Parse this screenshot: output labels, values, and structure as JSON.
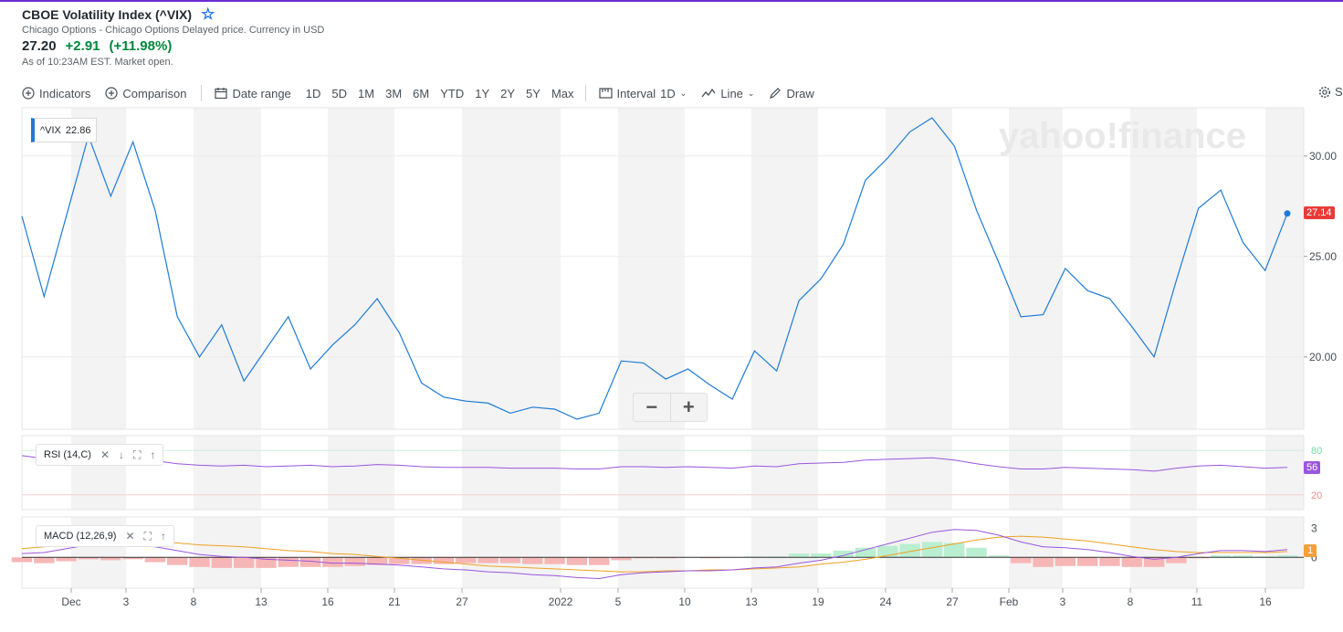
{
  "header": {
    "title": "CBOE Volatility Index (^VIX)",
    "subtitle": "Chicago Options - Chicago Options Delayed price. Currency in USD",
    "price": "27.20",
    "change": "+2.91",
    "change_pct": "(+11.98%)",
    "as_of": "As of 10:23AM EST. Market open."
  },
  "toolbar": {
    "indicators": "Indicators",
    "comparison": "Comparison",
    "date_range": "Date range",
    "ranges": [
      "1D",
      "5D",
      "1M",
      "3M",
      "6M",
      "YTD",
      "1Y",
      "2Y",
      "5Y",
      "Max"
    ],
    "interval_label": "Interval",
    "interval_value": "1D",
    "chart_type": "Line",
    "draw": "Draw",
    "settings": "S"
  },
  "watermark": "yahoo!finance",
  "price_label": {
    "symbol": "^VIX",
    "value": "22.86"
  },
  "current_tag": "27.14",
  "rsi": {
    "label": "RSI (14,C)",
    "tag": "56",
    "levels": [
      "80",
      "20"
    ]
  },
  "macd": {
    "label": "MACD (12,26,9)",
    "tag": "1",
    "ticks": [
      "3",
      "0"
    ]
  },
  "zoom": {
    "minus": "−",
    "plus": "+"
  },
  "colors": {
    "price_line": "#1e7ad7",
    "rsi_line": "#9b55e0",
    "macd_line": "#9b55e0",
    "signal_line": "#f0a020",
    "hist_pos": "#b9efd0",
    "hist_neg": "#f7b6b6",
    "tag_red": "#e93a3a",
    "tag_purple": "#9b55e0",
    "tag_orange": "#f3a03c"
  },
  "chart_data": {
    "type": "line",
    "x_labels": [
      "Dec",
      "3",
      "8",
      "13",
      "16",
      "21",
      "27",
      "2022",
      "5",
      "10",
      "13",
      "19",
      "24",
      "27",
      "Feb",
      "3",
      "8",
      "11",
      "16"
    ],
    "ylim": [
      16.4,
      32.4
    ],
    "y_ticks": [
      "30.00",
      "25.00",
      "20.00"
    ],
    "series": [
      {
        "name": "^VIX",
        "values": [
          27.0,
          23.0,
          27.0,
          31.0,
          28.0,
          30.7,
          27.3,
          22.0,
          20.0,
          21.6,
          18.8,
          20.4,
          22.0,
          19.4,
          20.6,
          21.6,
          22.9,
          21.2,
          18.7,
          18.0,
          17.8,
          17.7,
          17.2,
          17.5,
          17.4,
          16.9,
          17.2,
          19.8,
          19.7,
          18.9,
          19.4,
          18.6,
          17.9,
          20.3,
          19.3,
          22.8,
          23.9,
          25.6,
          28.8,
          29.9,
          31.2,
          31.9,
          30.5,
          27.3,
          24.7,
          22.0,
          22.1,
          24.4,
          23.3,
          22.9,
          21.5,
          20.0,
          23.8,
          27.4,
          28.3,
          25.7,
          24.3,
          27.14
        ]
      }
    ],
    "rsi_values": [
      73,
      69,
      66,
      67,
      68,
      67,
      66,
      62,
      60,
      59,
      60,
      58,
      59,
      60,
      58,
      59,
      61,
      60,
      58,
      57,
      57,
      57,
      56,
      56,
      56,
      55,
      55,
      58,
      58,
      57,
      58,
      57,
      56,
      59,
      58,
      62,
      63,
      64,
      67,
      68,
      69,
      70,
      67,
      62,
      58,
      55,
      55,
      57,
      56,
      55,
      54,
      52,
      56,
      59,
      60,
      58,
      56,
      57
    ],
    "macd_values": [
      0.4,
      0.5,
      0.9,
      1.3,
      1.3,
      1.5,
      1.1,
      0.7,
      0.3,
      0.1,
      0.0,
      -0.2,
      -0.3,
      -0.4,
      -0.6,
      -0.6,
      -0.7,
      -0.8,
      -1.0,
      -1.2,
      -1.3,
      -1.5,
      -1.6,
      -1.8,
      -1.9,
      -2.1,
      -2.2,
      -1.8,
      -1.6,
      -1.5,
      -1.4,
      -1.4,
      -1.3,
      -1.1,
      -1.0,
      -0.6,
      -0.3,
      0.2,
      0.8,
      1.4,
      2.0,
      2.6,
      2.9,
      2.8,
      2.3,
      1.6,
      1.1,
      1.0,
      0.8,
      0.5,
      0.1,
      -0.2,
      0.0,
      0.4,
      0.7,
      0.7,
      0.6,
      0.8
    ],
    "signal_values": [
      0.9,
      1.1,
      1.3,
      1.5,
      1.6,
      1.7,
      1.6,
      1.5,
      1.3,
      1.2,
      1.1,
      0.9,
      0.7,
      0.6,
      0.4,
      0.3,
      0.1,
      -0.1,
      -0.3,
      -0.5,
      -0.7,
      -0.9,
      -1.0,
      -1.1,
      -1.2,
      -1.3,
      -1.4,
      -1.5,
      -1.5,
      -1.4,
      -1.4,
      -1.3,
      -1.3,
      -1.2,
      -1.1,
      -1.0,
      -0.7,
      -0.5,
      -0.2,
      0.2,
      0.6,
      1.0,
      1.4,
      1.8,
      2.1,
      2.2,
      2.1,
      1.9,
      1.7,
      1.4,
      1.1,
      0.8,
      0.6,
      0.5,
      0.5,
      0.5,
      0.5,
      0.6
    ],
    "histogram_values": [
      -0.5,
      -0.6,
      -0.4,
      -0.2,
      -0.3,
      -0.2,
      -0.5,
      -0.8,
      -1.0,
      -1.1,
      -1.1,
      -1.1,
      -1.0,
      -1.0,
      -1.0,
      -0.9,
      -0.8,
      -0.7,
      -0.7,
      -0.7,
      -0.6,
      -0.6,
      -0.6,
      -0.7,
      -0.7,
      -0.8,
      -0.8,
      -0.3,
      -0.1,
      -0.1,
      0.0,
      -0.1,
      0.0,
      0.1,
      0.1,
      0.4,
      0.4,
      0.7,
      1.0,
      1.2,
      1.4,
      1.6,
      1.5,
      1.0,
      0.2,
      -0.6,
      -1.0,
      -0.9,
      -0.9,
      -0.9,
      -1.0,
      -1.0,
      -0.6,
      -0.1,
      0.2,
      0.2,
      0.1,
      0.2
    ]
  }
}
